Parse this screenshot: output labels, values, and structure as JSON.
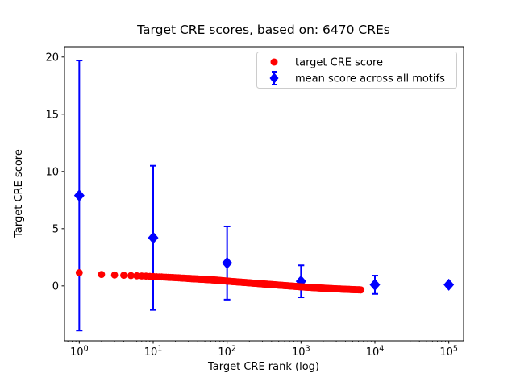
{
  "figure": {
    "title": "Target CRE scores, based on: 6470 CREs",
    "xlabel": "Target CRE rank (log)",
    "ylabel": "Target CRE score",
    "background_color": "#ffffff",
    "n_cres": 6470
  },
  "legend": {
    "entries": [
      {
        "label": "target CRE score",
        "marker": "circle",
        "color": "#ff0000"
      },
      {
        "label": "mean score across all motifs",
        "marker": "diamond-errorbar",
        "color": "#0000ff"
      }
    ],
    "border_color": "#cccccc",
    "position": "upper right"
  },
  "chart_data": {
    "type": "scatter",
    "title": "Target CRE scores, based on: 6470 CREs",
    "xlabel": "Target CRE rank (log)",
    "ylabel": "Target CRE score",
    "x_scale": "log",
    "grid": false,
    "xlim_log10": [
      -0.2,
      5.2
    ],
    "ylim": [
      -4.8,
      20.9
    ],
    "x_tick_exponents": [
      0,
      1,
      2,
      3,
      4,
      5
    ],
    "x_tick_values": [
      1,
      10,
      100,
      1000,
      10000,
      100000
    ],
    "y_ticks": [
      0,
      5,
      10,
      15,
      20
    ],
    "series": [
      {
        "name": "mean score across all motifs",
        "plot_type": "errorbar",
        "marker": "diamond",
        "color": "#0000ff",
        "x": [
          1,
          10,
          100,
          1000,
          10000,
          100000
        ],
        "y": [
          7.9,
          4.2,
          2.0,
          0.4,
          0.1,
          0.1
        ],
        "yerr": [
          11.8,
          6.3,
          3.2,
          1.4,
          0.8,
          0
        ]
      },
      {
        "name": "target CRE score",
        "plot_type": "scatter",
        "marker": "circle",
        "color": "#ff0000",
        "n_points": 6470,
        "description": "dense monotonically decreasing stream of 6470 points from rank 1 to 6470; anchor points below, interpolated in log10(x)",
        "anchor_points": [
          [
            1,
            1.15
          ],
          [
            2,
            1.0
          ],
          [
            3,
            0.95
          ],
          [
            4,
            0.93
          ],
          [
            5,
            0.9
          ],
          [
            7,
            0.87
          ],
          [
            10,
            0.82
          ],
          [
            15,
            0.76
          ],
          [
            20,
            0.72
          ],
          [
            30,
            0.65
          ],
          [
            50,
            0.57
          ],
          [
            70,
            0.51
          ],
          [
            100,
            0.42
          ],
          [
            150,
            0.33
          ],
          [
            200,
            0.27
          ],
          [
            300,
            0.18
          ],
          [
            500,
            0.07
          ],
          [
            700,
            0.0
          ],
          [
            1000,
            -0.08
          ],
          [
            1500,
            -0.15
          ],
          [
            2000,
            -0.2
          ],
          [
            3000,
            -0.26
          ],
          [
            4500,
            -0.31
          ],
          [
            6470,
            -0.35
          ]
        ]
      }
    ]
  }
}
